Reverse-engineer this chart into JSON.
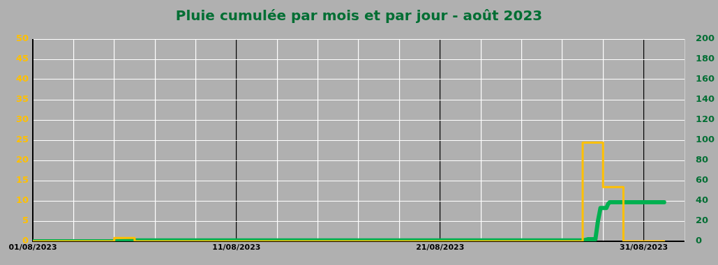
{
  "chart_data": {
    "type": "line",
    "title": "Pluie cumulée par mois et par jour - août 2023",
    "series": [
      {
        "type": "step",
        "color": "#ffc000",
        "x": [
          "2023-08-01",
          "2023-08-05",
          "2023-08-06",
          "2023-08-28",
          "2023-08-29",
          "2023-08-30",
          "2023-09-01"
        ],
        "values": [
          0,
          0.8,
          0,
          24.4,
          13.4,
          0,
          0
        ]
      },
      {
        "axis": "y2",
        "color": "#00b050",
        "x": [
          "2023-08-01",
          "2023-08-05",
          "2023-08-06",
          "2023-08-28T00:00",
          "2023-08-28T06:00",
          "2023-08-28T15:00",
          "2023-08-28T18:00",
          "2023-08-28T21:00",
          "2023-08-29T04:00",
          "2023-08-29T06:00",
          "2023-08-29T08:00",
          "2023-09-01"
        ],
        "values": [
          0,
          0,
          0.8,
          0.8,
          2,
          2,
          20,
          33,
          33,
          37,
          38.6,
          38.6
        ]
      }
    ],
    "xlim": [
      "2023-08-01",
      "2023-09-02"
    ],
    "xticks": [
      {
        "value": "2023-08-01",
        "label": "01/08/2023"
      },
      {
        "value": "2023-08-03",
        "label": null
      },
      {
        "value": "2023-08-05",
        "label": null
      },
      {
        "value": "2023-08-07",
        "label": null
      },
      {
        "value": "2023-08-09",
        "label": null
      },
      {
        "value": "2023-08-11",
        "label": "11/08/2023"
      },
      {
        "value": "2023-08-13",
        "label": null
      },
      {
        "value": "2023-08-15",
        "label": null
      },
      {
        "value": "2023-08-17",
        "label": null
      },
      {
        "value": "2023-08-19",
        "label": null
      },
      {
        "value": "2023-08-21",
        "label": "21/08/2023"
      },
      {
        "value": "2023-08-23",
        "label": null
      },
      {
        "value": "2023-08-25",
        "label": null
      },
      {
        "value": "2023-08-27",
        "label": null
      },
      {
        "value": "2023-08-29",
        "label": null
      },
      {
        "value": "2023-08-31",
        "label": "31/08/2023"
      }
    ],
    "ylim": [
      0,
      50
    ],
    "yticks": [
      0,
      5,
      10,
      15,
      20,
      25,
      30,
      35,
      40,
      45,
      50
    ],
    "y2lim": [
      0,
      200
    ],
    "y2ticks": [
      0,
      20,
      40,
      60,
      80,
      100,
      120,
      140,
      160,
      180,
      200
    ],
    "grid": true,
    "legend": false
  }
}
